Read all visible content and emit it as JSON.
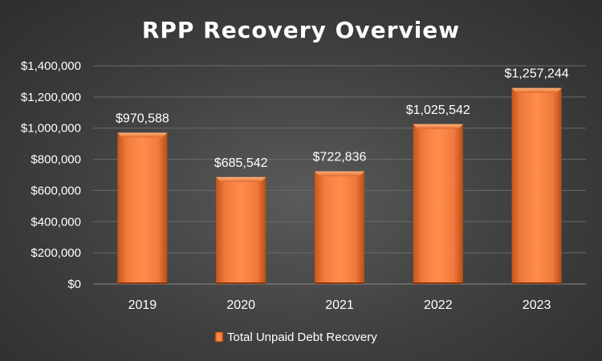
{
  "chart_data": {
    "type": "bar",
    "title": "RPP Recovery Overview",
    "categories": [
      "2019",
      "2020",
      "2021",
      "2022",
      "2023"
    ],
    "series": [
      {
        "name": "Total Unpaid Debt Recovery",
        "values": [
          970588,
          685542,
          722836,
          1025542,
          1257244
        ],
        "labels": [
          "$970,588",
          "$685,542",
          "$722,836",
          "$1,025,542",
          "$1,257,244"
        ]
      }
    ],
    "yticks": [
      "$0",
      "$200,000",
      "$400,000",
      "$600,000",
      "$800,000",
      "$1,000,000",
      "$1,200,000",
      "$1,400,000"
    ],
    "ylim": [
      0,
      1400000
    ],
    "grid": true,
    "legend": "bottom",
    "colors": {
      "bar": "#f07a3c",
      "bar_light": "#ff9a5c",
      "bar_dark": "#c85a1e",
      "text": "#ffffff",
      "grid": "#6a6a6a"
    }
  }
}
